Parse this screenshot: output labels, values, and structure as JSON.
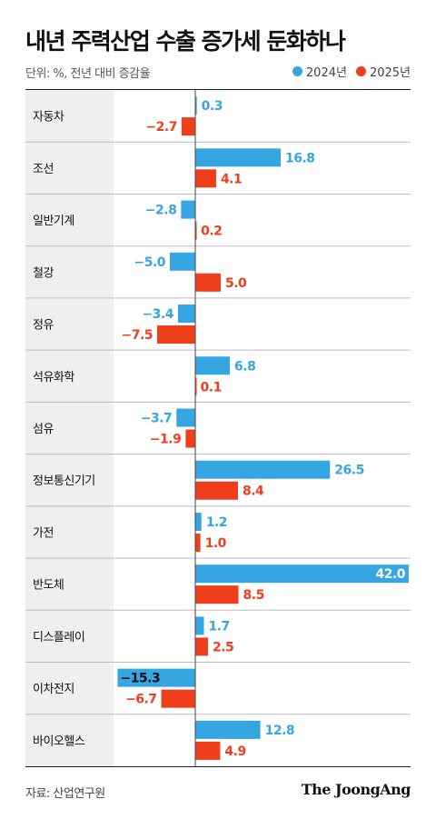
{
  "title": "내년 주력산업 수출 증가세 둔화하나",
  "unit_note": "단위: %, 전년 대비 증감율",
  "source": "자료: 산업연구원",
  "brand": "The JoongAng",
  "colors": {
    "2024": "#36a6e2",
    "2025": "#ee3e1c",
    "label_bg": "#efefef"
  },
  "chart_data": {
    "type": "bar",
    "orientation": "horizontal",
    "xlim": [
      -20,
      42
    ],
    "categories": [
      "자동차",
      "조선",
      "일반기계",
      "철강",
      "정유",
      "석유화학",
      "섬유",
      "정보통신기기",
      "가전",
      "반도체",
      "디스플레이",
      "이차전지",
      "바이오헬스"
    ],
    "series": [
      {
        "name": "2024년",
        "values": [
          0.3,
          16.8,
          -2.8,
          -5.0,
          -3.4,
          6.8,
          -3.7,
          26.5,
          1.2,
          42.0,
          1.7,
          -15.3,
          12.8
        ],
        "labels": [
          "0.3",
          "16.8",
          "−2.8",
          "−5.0",
          "−3.4",
          "6.8",
          "−3.7",
          "26.5",
          "1.2",
          "42.0",
          "1.7",
          "−15.3",
          "12.8"
        ]
      },
      {
        "name": "2025년",
        "values": [
          -2.7,
          4.1,
          0.2,
          5.0,
          -7.5,
          0.1,
          -1.9,
          8.4,
          1.0,
          8.5,
          2.5,
          -6.7,
          4.9
        ],
        "labels": [
          "−2.7",
          "4.1",
          "0.2",
          "5.0",
          "−7.5",
          "0.1",
          "−1.9",
          "8.4",
          "1.0",
          "8.5",
          "2.5",
          "−6.7",
          "4.9"
        ]
      }
    ]
  }
}
